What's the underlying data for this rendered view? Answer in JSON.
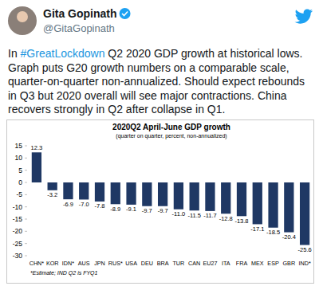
{
  "tweet": {
    "name": "Gita Gopinath",
    "handle": "@GitaGopinath",
    "text": [
      "In #GreatLockdown Q2 2020 GDP growth at historical lows.",
      "Graph puts G20 growth numbers on a comparable scale,",
      "quarter-on-quarter non-annualized. Should expect rebounds",
      "in Q3 but 2020 overall will see major contractions. China",
      "recovers strongly in Q2 after collapse in Q1."
    ]
  },
  "chart_data": {
    "type": "bar",
    "title": "2020Q2 April-June GDP growth",
    "subtitle": "(quarter on quarter, percent, non-annualized)",
    "annotations": [
      "*Estimate; IND Q2 is FYQ1"
    ],
    "categories": [
      "CHN*",
      "KOR",
      "IDN*",
      "AUS",
      "JPN",
      "RUS*",
      "USA",
      "DEU",
      "BRA",
      "TUR",
      "CAN",
      "EU27",
      "ITA",
      "FRA",
      "MEX",
      "ESP",
      "GBR",
      "IND*"
    ],
    "values": [
      12.3,
      -3.2,
      -6.9,
      -7.0,
      -7.8,
      -8.9,
      -9.1,
      -9.7,
      -9.7,
      -11.0,
      -11.5,
      -11.7,
      -12.8,
      -13.8,
      -17.1,
      -18.5,
      -20.4,
      -25.6
    ],
    "value_labels": [
      "12.3",
      "-3.2",
      "-6.9",
      "-7.0",
      "-7.8",
      "-8.9",
      "-9.1",
      "-9.7",
      "-9.7",
      "-11.0",
      "-11.5",
      "-11.7",
      "-12.8",
      "-13.8",
      "-17.1",
      "-18.5",
      "-20.4",
      "-25.6"
    ],
    "color": "#1f3864",
    "ylim": [
      -30,
      15
    ],
    "yticks": [
      15,
      10,
      5,
      0,
      -5,
      -10,
      -15,
      -20,
      -25,
      -30
    ],
    "grid": false,
    "data_labels": true
  }
}
